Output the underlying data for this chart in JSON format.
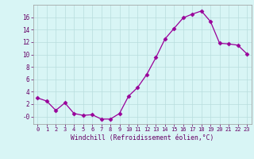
{
  "x": [
    0,
    1,
    2,
    3,
    4,
    5,
    6,
    7,
    8,
    9,
    10,
    11,
    12,
    13,
    14,
    15,
    16,
    17,
    18,
    19,
    20,
    21,
    22,
    23
  ],
  "y": [
    3.0,
    2.5,
    1.0,
    2.2,
    0.5,
    0.2,
    0.3,
    -0.4,
    -0.4,
    0.5,
    3.3,
    4.7,
    6.8,
    9.5,
    12.5,
    14.2,
    15.9,
    16.5,
    17.0,
    15.3,
    11.8,
    11.7,
    11.5,
    10.1
  ],
  "xlabel": "Windchill (Refroidissement éolien,°C)",
  "line_color": "#990099",
  "marker": "D",
  "marker_size": 2.5,
  "bg_color": "#d8f5f5",
  "grid_color": "#b8dede",
  "ylim": [
    -1.2,
    18.0
  ],
  "yticks": [
    0,
    2,
    4,
    6,
    8,
    10,
    12,
    14,
    16
  ],
  "ytick_labels": [
    "-0",
    "2",
    "4",
    "6",
    "8",
    "10",
    "12",
    "14",
    "16"
  ],
  "xlim": [
    -0.5,
    23.5
  ],
  "xticks": [
    0,
    1,
    2,
    3,
    4,
    5,
    6,
    7,
    8,
    9,
    10,
    11,
    12,
    13,
    14,
    15,
    16,
    17,
    18,
    19,
    20,
    21,
    22,
    23
  ],
  "xtick_labels": [
    "0",
    "1",
    "2",
    "3",
    "4",
    "5",
    "6",
    "7",
    "8",
    "9",
    "10",
    "11",
    "12",
    "13",
    "14",
    "15",
    "16",
    "17",
    "18",
    "19",
    "20",
    "21",
    "22",
    "23"
  ]
}
